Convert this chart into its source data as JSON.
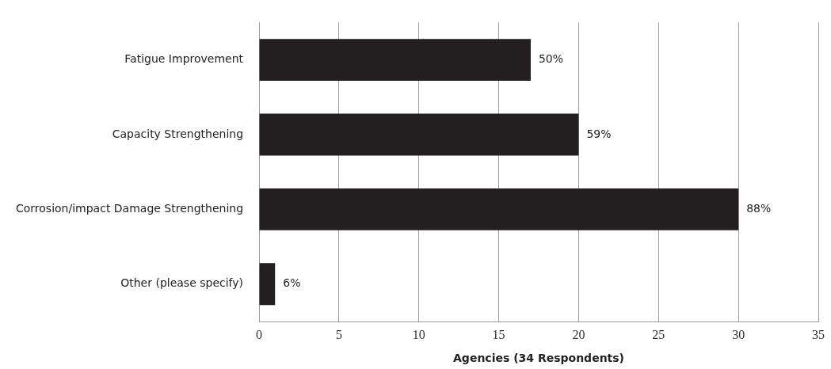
{
  "chart_data": {
    "type": "bar",
    "orientation": "horizontal",
    "xlabel": "Agencies (34 Respondents)",
    "categories": [
      "Fatigue Improvement",
      "Capacity Strengthening",
      "Corrosion/impact Damage Strengthening",
      "Other (please specify)"
    ],
    "values": [
      17,
      20,
      30,
      1
    ],
    "color": "#231f20",
    "annotations": [
      {
        "text": "50%",
        "x": 17,
        "y": "Fatigue Improvement"
      },
      {
        "text": "59%",
        "x": 20,
        "y": "Capacity Strengthening"
      },
      {
        "text": "88%",
        "x": 30,
        "y": "Corrosion/impact Damage Strengthening"
      },
      {
        "text": "6%",
        "x": 1,
        "y": "Other (please specify)"
      }
    ],
    "xlim": [
      0,
      35
    ],
    "xticks": [
      0,
      5,
      10,
      15,
      20,
      25,
      30,
      35
    ],
    "grid": "x",
    "legend": false
  }
}
